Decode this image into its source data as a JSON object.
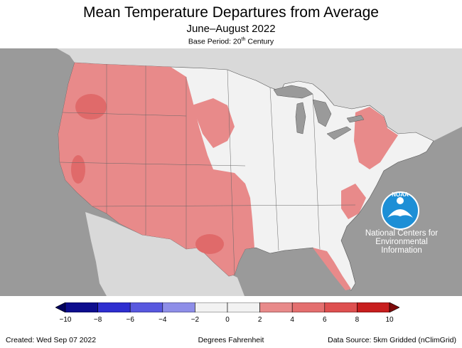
{
  "header": {
    "title": "Mean Temperature Departures from Average",
    "subtitle": "June–August 2022",
    "base_period_prefix": "Base Period: 20",
    "base_period_sup": "th",
    "base_period_suffix": " Century"
  },
  "logo": {
    "text": "NOAA",
    "org_line1": "National Centers for",
    "org_line2": "Environmental",
    "org_line3": "Information"
  },
  "legend": {
    "unit_label": "Degrees Fahrenheit",
    "ticks": [
      "−10",
      "−8",
      "−6",
      "−4",
      "−2",
      "0",
      "2",
      "4",
      "6",
      "8",
      "10"
    ],
    "colors": [
      "#0d0d8e",
      "#2e2ed0",
      "#5858df",
      "#8e8ee8",
      "#f2f2f2",
      "#f2f2f2",
      "#e88a8a",
      "#e46f6f",
      "#de5050",
      "#c81e1e"
    ],
    "arrow_low_color": "#03035e",
    "arrow_high_color": "#7d0a0a"
  },
  "footer": {
    "created": "Created: Wed Sep 07 2022",
    "source": "Data Source: 5km Gridded (nClimGrid)"
  },
  "colors": {
    "ocean": "#9a9a9a",
    "land_outside": "#d9d9d9",
    "near_normal": "#f2f2f2",
    "warm": "#e88a8a",
    "warmer": "#e06a6a",
    "lakes": "#9a9a9a",
    "noaa_blue": "#1d8fd6"
  }
}
